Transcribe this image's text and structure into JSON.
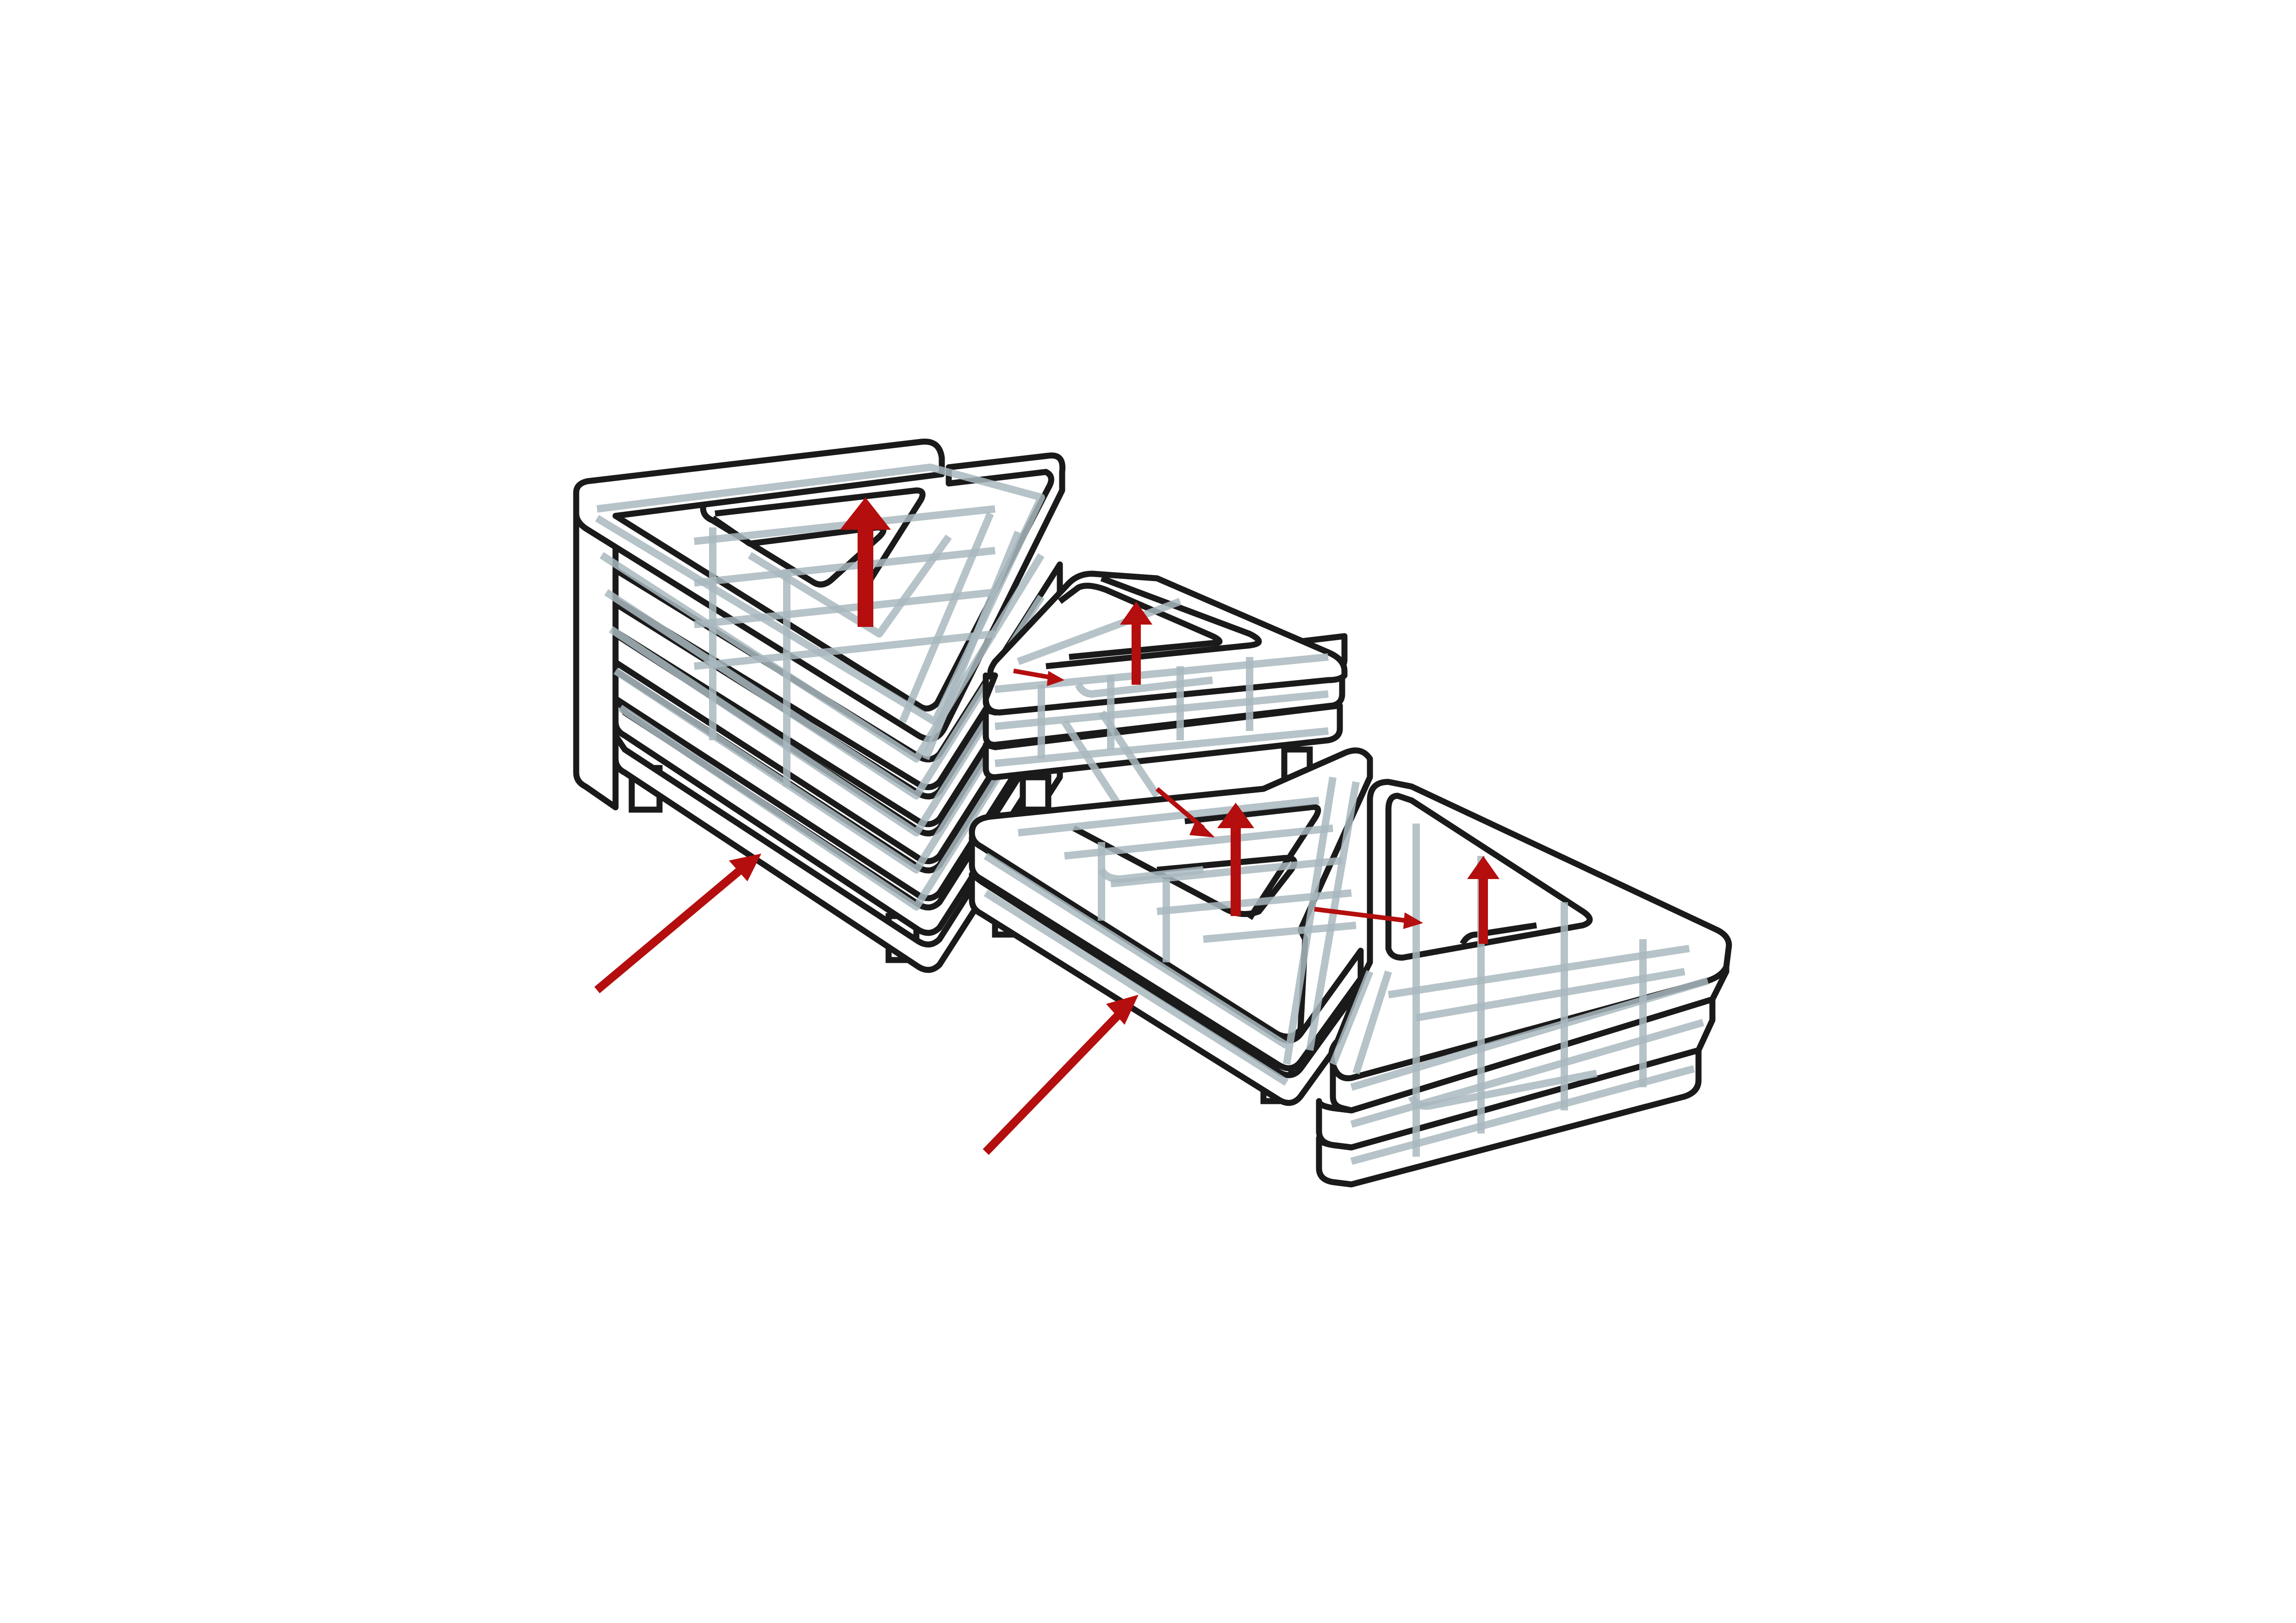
{
  "diagram": {
    "kind": "isometric stacked-frame building diagram",
    "text": []
  },
  "colors": {
    "background": "#ffffff",
    "outline": "#1a1a1a",
    "ghost_lines": "#a9b9be",
    "arrows": "#b40e0e"
  },
  "icons": {
    "large_arrow": "arrow-up-right-icon",
    "small_arrow": "arrow-right-icon",
    "vertical_arrow": "arrow-up-icon"
  }
}
